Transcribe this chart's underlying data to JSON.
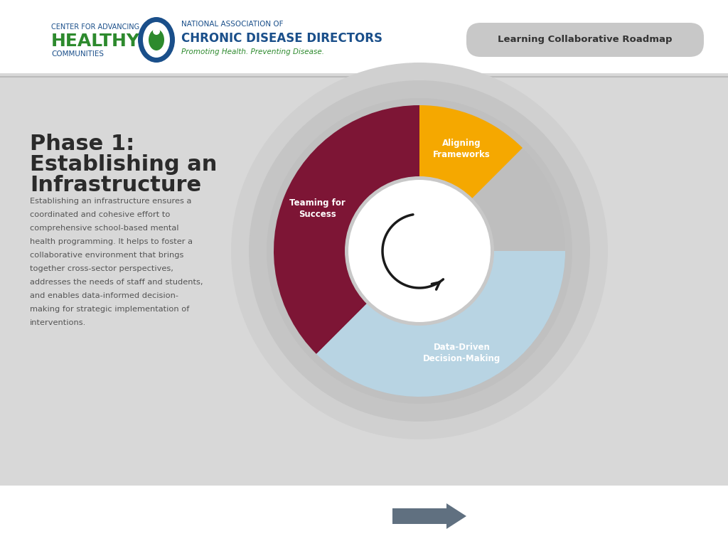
{
  "bg_white": "#ffffff",
  "bg_panel": "#d8d8d8",
  "bg_bottom": "#ffffff",
  "header_line_color": "#bbbbbb",
  "roadmap_btn_color": "#c0c0c0",
  "roadmap_btn_text": "Learning Collaborative Roadmap",
  "phase_title_line1": "Phase 1:",
  "phase_title_line2": "Establishing an",
  "phase_title_line3": "Infrastructure",
  "phase_title_color": "#2b2b2b",
  "body_text_lines": [
    "Establishing an infrastructure ensures a",
    "coordinated and cohesive effort to",
    "comprehensive school-based mental",
    "health programming. It helps to foster a",
    "collaborative environment that brings",
    "together cross-sector perspectives,",
    "addresses the needs of staff and students,",
    "and enables data-informed decision-",
    "making for strategic implementation of",
    "interventions."
  ],
  "body_text_color": "#555555",
  "segments": [
    {
      "label": "Aligning\nFrameworks",
      "color": "#f5a800",
      "theta1": 45,
      "theta2": 90
    },
    {
      "label": "Teaming for\nSuccess",
      "color": "#7d1535",
      "theta1": 90,
      "theta2": 225
    },
    {
      "label": "Data-Driven\nDecision-Making",
      "color": "#b8d4e3",
      "theta1": 225,
      "theta2": 360
    }
  ],
  "ring_colors": [
    "#d8d8d8",
    "#c8c8c8",
    "#b8b8b8",
    "#c5c5c5"
  ],
  "inner_white": "#ffffff",
  "arrow_color": "#607080",
  "cahc_small": "CENTER FOR ADVANCING",
  "cahc_big": "HEALTHY",
  "cahc_sub": "COMMUNITIES",
  "nacd_small": "NATIONAL ASSOCIATION OF",
  "nacd_big": "CHRONIC DISEASE DIRECTORS",
  "nacd_tagline": "Promoting Health. Preventing Disease.",
  "logo_blue": "#1a4f8a",
  "logo_green": "#2d8a2d",
  "nacd_blue": "#1a4f8a"
}
